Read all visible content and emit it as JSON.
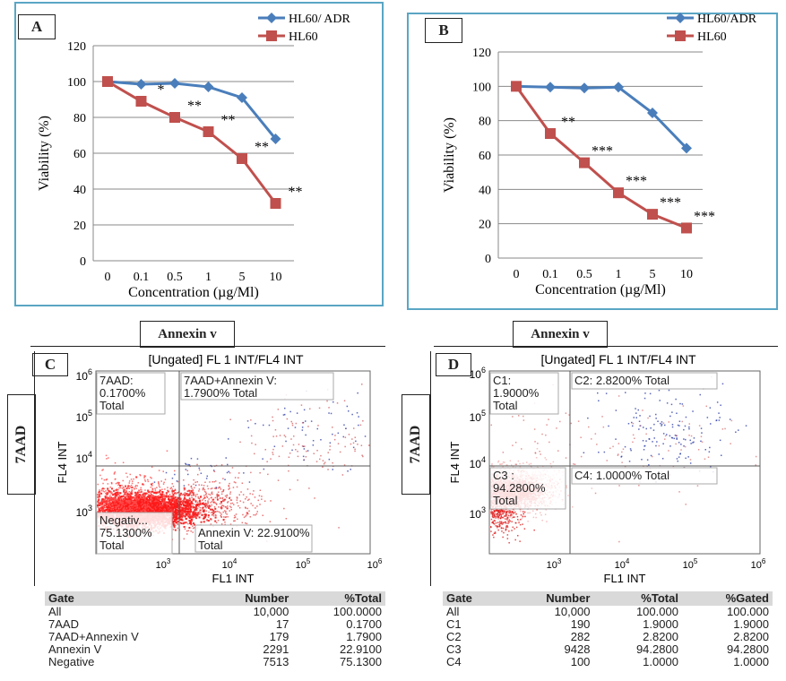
{
  "chart_data": [
    {
      "type": "line",
      "panel": "A",
      "categories": [
        "0",
        "0.1",
        "0.5",
        "1",
        "5",
        "10"
      ],
      "xlabel": "Concentration (µg/Ml)",
      "ylabel": "Viability (%)",
      "ylim": [
        0,
        120
      ],
      "yticks": [
        "0",
        "20",
        "40",
        "60",
        "80",
        "100",
        "120"
      ],
      "grid": "horizontal",
      "legend": "top-right",
      "series": [
        {
          "name": "HL60/ ADR",
          "color": "#4a7ebb",
          "marker": "diamond",
          "values": [
            100,
            98.5,
            99,
            97,
            91,
            68
          ]
        },
        {
          "name": "HL60",
          "color": "#c0504d",
          "marker": "square",
          "values": [
            100,
            89,
            80,
            72,
            57,
            32
          ]
        }
      ],
      "annotations": [
        "",
        "*",
        "**",
        "**",
        "**",
        "**"
      ]
    },
    {
      "type": "line",
      "panel": "B",
      "categories": [
        "0",
        "0.1",
        "0.5",
        "1",
        "5",
        "10"
      ],
      "xlabel": "Concentration (µg/Ml)",
      "ylabel": "Viability (%)",
      "ylim": [
        0,
        120
      ],
      "yticks": [
        "0",
        "20",
        "40",
        "60",
        "80",
        "100",
        "120"
      ],
      "grid": "horizontal",
      "legend": "top-right",
      "series": [
        {
          "name": "HL60/ADR",
          "color": "#4a7ebb",
          "marker": "diamond",
          "values": [
            100,
            99.5,
            99,
            99.5,
            84.5,
            64
          ]
        },
        {
          "name": "HL60",
          "color": "#c0504d",
          "marker": "square",
          "values": [
            100,
            72.5,
            55.5,
            38,
            25.5,
            17.5
          ]
        }
      ],
      "annotations": [
        "",
        "**",
        "***",
        "***",
        "***",
        "***"
      ]
    },
    {
      "type": "scatter",
      "panel": "C",
      "title": "[Ungated] FL 1 INT/FL4 INT",
      "xlabel": "FL1 INT",
      "ylabel": "FL4 INT",
      "xtick_exponents": [
        "3",
        "4",
        "5",
        "6"
      ],
      "ytick_exponents": [
        "3",
        "4",
        "5",
        "6"
      ],
      "axis_marker_top": "Annexin v",
      "axis_marker_side": "7AAD",
      "quadrants": {
        "ul": [
          "7AAD:",
          "0.1700%",
          "Total"
        ],
        "ur": [
          "7AAD+Annexin V:",
          "1.7900% Total"
        ],
        "ll": [
          "Negativ...",
          "75.1300%",
          "Total"
        ],
        "lr": [
          "Annexin V: 22.9100%",
          "Total"
        ]
      },
      "table": {
        "headers": [
          "Gate",
          "Number",
          "%Total"
        ],
        "rows": [
          [
            "All",
            "10,000",
            "100.0000"
          ],
          [
            "7AAD",
            "17",
            "0.1700"
          ],
          [
            "7AAD+Annexin V",
            "179",
            "1.7900"
          ],
          [
            "Annexin V",
            "2291",
            "22.9100"
          ],
          [
            "Negative",
            "7513",
            "75.1300"
          ]
        ]
      }
    },
    {
      "type": "scatter",
      "panel": "D",
      "title": "[Ungated] FL 1 INT/FL4 INT",
      "xlabel": "FL1 INT",
      "ylabel": "FL4 INT",
      "xtick_exponents": [
        "3",
        "4",
        "5",
        "6"
      ],
      "ytick_exponents": [
        "3",
        "4",
        "5",
        "6"
      ],
      "axis_marker_top": "Annexin v",
      "axis_marker_side": "7AAD",
      "quadrants": {
        "ul": [
          "C1:",
          "1.9000%",
          "Total"
        ],
        "ur": [
          "C2: 2.8200% Total"
        ],
        "ll": [
          "C3 :",
          "94.2800%",
          "Total"
        ],
        "lr": [
          "C4: 1.0000% Total"
        ]
      },
      "table": {
        "headers": [
          "Gate",
          "Number",
          "%Total",
          "%Gated"
        ],
        "rows": [
          [
            "All",
            "10,000",
            "100.000",
            "100.000"
          ],
          [
            "C1",
            "190",
            "1.9000",
            "1.9000"
          ],
          [
            "C2",
            "282",
            "2.8200",
            "2.8200"
          ],
          [
            "C3",
            "9428",
            "94.2800",
            "94.2800"
          ],
          [
            "C4",
            "100",
            "1.0000",
            "1.0000"
          ]
        ]
      }
    }
  ],
  "colors": {
    "panel_border": "#5aa6c4",
    "blue": "#4a7ebb",
    "red": "#c0504d",
    "flow_red": "#e8201c",
    "flow_blue": "#3344aa"
  }
}
